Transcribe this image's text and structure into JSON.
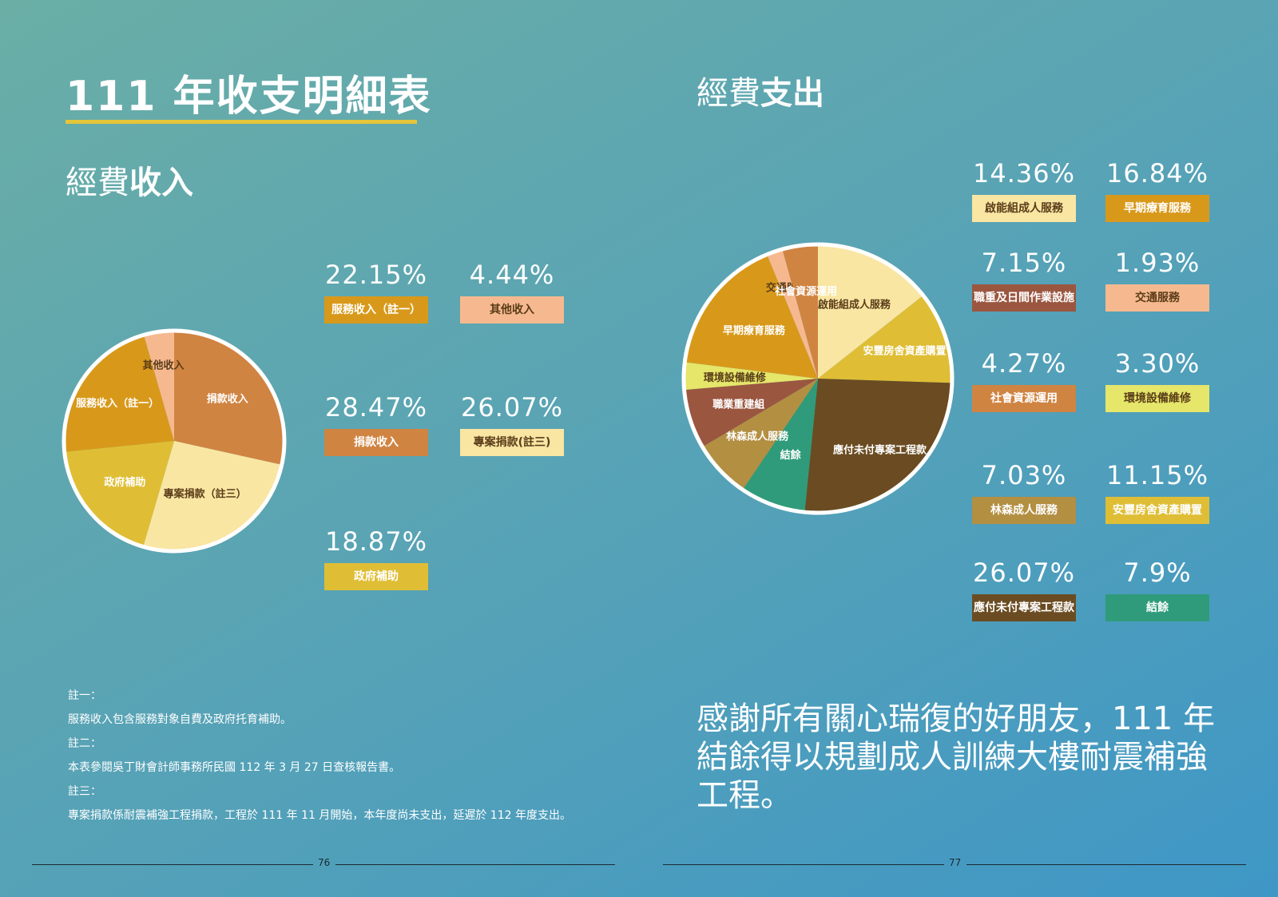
{
  "page_title": "111 年收支明細表",
  "income": {
    "heading_thin": "經費",
    "heading_bold": "收入"
  },
  "expense": {
    "heading_thin": "經費",
    "heading_bold": "支出"
  },
  "chart_data": [
    {
      "type": "pie",
      "title": "經費收入",
      "slices": [
        {
          "label": "捐款收入",
          "value": 28.47,
          "pct_text": "28.47%",
          "color": "#d08442",
          "pie_label": "捐款收入"
        },
        {
          "label": "專案捐款(註三)",
          "value": 26.07,
          "pct_text": "26.07%",
          "color": "#f9e6a3",
          "pie_label": "專案捐款（註三）"
        },
        {
          "label": "政府補助",
          "value": 18.87,
          "pct_text": "18.87%",
          "color": "#dfbe35",
          "pie_label": "政府補助"
        },
        {
          "label": "服務收入（註一）",
          "value": 22.15,
          "pct_text": "22.15%",
          "color": "#d8991b",
          "pie_label": "服務收入（註一）"
        },
        {
          "label": "其他收入",
          "value": 4.44,
          "pct_text": "4.44%",
          "color": "#f6b98f",
          "pie_label": "其他收入"
        }
      ]
    },
    {
      "type": "pie",
      "title": "經費支出",
      "slices": [
        {
          "label": "啟能組成人服務",
          "value": 14.36,
          "pct_text": "14.36%",
          "color": "#f9e6a3",
          "pie_label": "啟能組成人服務"
        },
        {
          "label": "安豐房舍資產購置",
          "value": 11.15,
          "pct_text": "11.15%",
          "color": "#dfbe35",
          "pie_label": "安豐房舍資產購置"
        },
        {
          "label": "應付未付專案工程款",
          "value": 26.07,
          "pct_text": "26.07%",
          "color": "#6b4c22",
          "pie_label": "應付未付專案工程款"
        },
        {
          "label": "結餘",
          "value": 7.9,
          "pct_text": "7.9%",
          "color": "#2f9b7a",
          "pie_label": "結餘"
        },
        {
          "label": "林森成人服務",
          "value": 7.03,
          "pct_text": "7.03%",
          "color": "#b38f42",
          "pie_label": "林森成人服務"
        },
        {
          "label": "職重及日間作業設施",
          "value": 7.15,
          "pct_text": "7.15%",
          "color": "#9b5640",
          "pie_label": "職業重建組"
        },
        {
          "label": "環境設備維修",
          "value": 3.3,
          "pct_text": "3.30%",
          "color": "#e5e66a",
          "pie_label": "環境設備維修"
        },
        {
          "label": "早期療育服務",
          "value": 16.84,
          "pct_text": "16.84%",
          "color": "#d8991b",
          "pie_label": "早期療育服務"
        },
        {
          "label": "交通服務",
          "value": 1.93,
          "pct_text": "1.93%",
          "color": "#f6b98f",
          "pie_label": "交通服務"
        },
        {
          "label": "社會資源運用",
          "value": 4.27,
          "pct_text": "4.27%",
          "color": "#d08442",
          "pie_label": "社會資源運用"
        }
      ]
    }
  ],
  "notes": [
    "註一：",
    "服務收入包含服務對象自費及政府托育補助。",
    "註二：",
    "本表參閱吳丁財會計師事務所民國 112 年 3 月 27 日查核報告書。",
    "註三：",
    "專案捐款係耐震補強工程捐款，工程於 111 年 11 月開始，本年度尚未支出，延遲於 112 年度支出。"
  ],
  "thanks": "感謝所有關心瑞復的好朋友，111 年結餘得以規劃成人訓練大樓耐震補強工程。",
  "page_numbers": [
    "76",
    "77"
  ]
}
